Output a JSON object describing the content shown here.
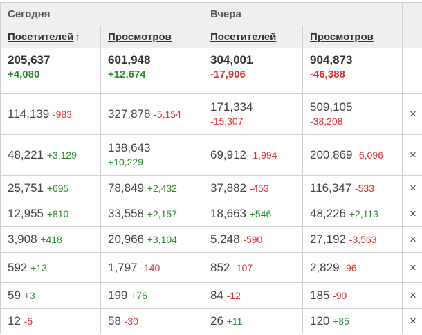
{
  "headers": {
    "group_today": "Сегодня",
    "group_yesterday": "Вчера",
    "visitors": "Посетителей",
    "views": "Просмотров",
    "sort_arrow": "↑"
  },
  "totals": {
    "today_visitors": {
      "value": "205,637",
      "delta": "+4,080"
    },
    "today_views": {
      "value": "601,948",
      "delta": "+12,674"
    },
    "yest_visitors": {
      "value": "304,001",
      "delta": "-17,906"
    },
    "yest_views": {
      "value": "904,873",
      "delta": "-46,388"
    }
  },
  "rows": [
    {
      "tv": "114,139",
      "tvd": "-983",
      "tw": "327,878",
      "twd": "-5,154",
      "yv": "171,334",
      "yvd": "-15,307",
      "yw": "509,105",
      "ywd": "-38,208",
      "remove": "×"
    },
    {
      "tv": "48,221",
      "tvd": "+3,129",
      "tw": "138,643",
      "twd": "+10,229",
      "yv": "69,912",
      "yvd": "-1,994",
      "yw": "200,869",
      "ywd": "-6,096",
      "remove": "×"
    },
    {
      "tv": "25,751",
      "tvd": "+695",
      "tw": "78,849",
      "twd": "+2,432",
      "yv": "37,882",
      "yvd": "-453",
      "yw": "116,347",
      "ywd": "-533",
      "remove": "×"
    },
    {
      "tv": "12,955",
      "tvd": "+810",
      "tw": "33,558",
      "twd": "+2,157",
      "yv": "18,663",
      "yvd": "+546",
      "yw": "48,226",
      "ywd": "+2,113",
      "remove": "×"
    },
    {
      "tv": "3,908",
      "tvd": "+418",
      "tw": "20,966",
      "twd": "+3,104",
      "yv": "5,248",
      "yvd": "-590",
      "yw": "27,192",
      "ywd": "-3,563",
      "remove": "×"
    },
    {
      "tv": "592",
      "tvd": "+13",
      "tw": "1,797",
      "twd": "-140",
      "yv": "852",
      "yvd": "-107",
      "yw": "2,829",
      "ywd": "-96",
      "remove": "×"
    },
    {
      "tv": "59",
      "tvd": "+3",
      "tw": "199",
      "twd": "+76",
      "yv": "84",
      "yvd": "-12",
      "yw": "185",
      "ywd": "-90",
      "remove": "×"
    },
    {
      "tv": "12",
      "tvd": "-5",
      "tw": "58",
      "twd": "-30",
      "yv": "26",
      "yvd": "+11",
      "yw": "120",
      "ywd": "+85",
      "remove": "×"
    }
  ],
  "colors": {
    "positive": "#2e8b2e",
    "negative": "#dd3333",
    "header_bg": "#efefef",
    "border": "#cfcfcf"
  }
}
